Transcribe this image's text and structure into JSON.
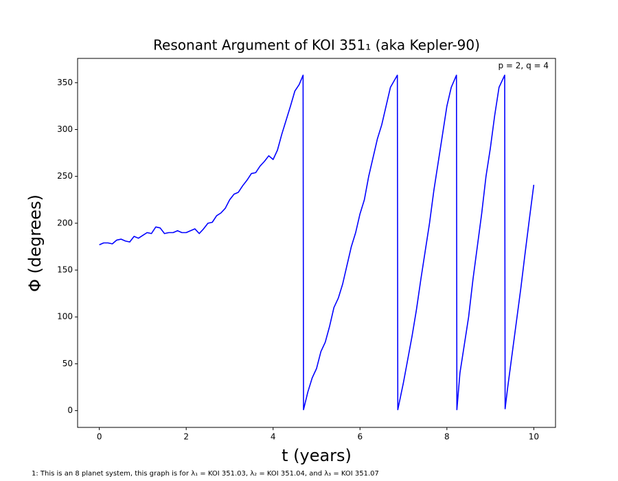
{
  "chart_data": {
    "type": "line",
    "title": "Resonant Argument of KOI 351₁ (aka Kepler-90)",
    "x_label": "t (years)",
    "y_label": "Φ (degrees)",
    "annotation": "p = 2, q = 4",
    "footnote": "1: This is an 8 planet system, this graph is for λ₁ = KOI 351.03, λ₂ = KOI 351.04, and λ₃ = KOI 351.07",
    "xlim": [
      -0.5,
      10.5
    ],
    "ylim": [
      -17.9,
      375.9
    ],
    "xticks": [
      0,
      2,
      4,
      6,
      8,
      10
    ],
    "yticks": [
      0,
      50,
      100,
      150,
      200,
      250,
      300,
      350
    ],
    "series": [
      {
        "color": "#0000ff",
        "x": [
          0,
          0.1,
          0.2,
          0.3,
          0.4,
          0.5,
          0.6,
          0.7,
          0.8,
          0.9,
          1.0,
          1.1,
          1.2,
          1.3,
          1.4,
          1.5,
          1.6,
          1.7,
          1.8,
          1.9,
          2.0,
          2.1,
          2.2,
          2.3,
          2.4,
          2.5,
          2.6,
          2.7,
          2.8,
          2.9,
          3.0,
          3.1,
          3.2,
          3.3,
          3.4,
          3.5,
          3.6,
          3.7,
          3.8,
          3.9,
          4.0,
          4.1,
          4.2,
          4.3,
          4.4,
          4.5,
          4.6,
          4.69,
          4.7,
          4.8,
          4.9,
          5.0,
          5.1,
          5.2,
          5.3,
          5.4,
          5.5,
          5.6,
          5.7,
          5.8,
          5.9,
          6.0,
          6.1,
          6.2,
          6.3,
          6.4,
          6.5,
          6.6,
          6.7,
          6.86,
          6.87,
          7.0,
          7.1,
          7.2,
          7.3,
          7.4,
          7.5,
          7.6,
          7.7,
          7.8,
          7.9,
          8.0,
          8.1,
          8.22,
          8.23,
          8.3,
          8.4,
          8.5,
          8.6,
          8.7,
          8.8,
          8.9,
          9.0,
          9.1,
          9.2,
          9.33,
          9.34,
          9.4,
          9.5,
          9.6,
          9.7,
          9.8,
          9.9,
          10.0
        ],
        "values": [
          177,
          179,
          179,
          178,
          182,
          183,
          181,
          180,
          186,
          184,
          187,
          190,
          189,
          196,
          195,
          189,
          190,
          190,
          192,
          190,
          190,
          192,
          194,
          189,
          194,
          200,
          201,
          208,
          211,
          216,
          225,
          231,
          233,
          240,
          246,
          253,
          254,
          261,
          266,
          272,
          268,
          278,
          295,
          310,
          325,
          341,
          348,
          358,
          1,
          20,
          35,
          45,
          63,
          73,
          90,
          110,
          120,
          135,
          155,
          175,
          190,
          210,
          225,
          250,
          270,
          290,
          305,
          325,
          345,
          358,
          1,
          30,
          55,
          80,
          108,
          140,
          170,
          200,
          235,
          265,
          295,
          325,
          345,
          358,
          1,
          40,
          70,
          100,
          140,
          175,
          210,
          250,
          280,
          315,
          345,
          358,
          2,
          25,
          60,
          95,
          130,
          168,
          205,
          241
        ]
      }
    ]
  }
}
